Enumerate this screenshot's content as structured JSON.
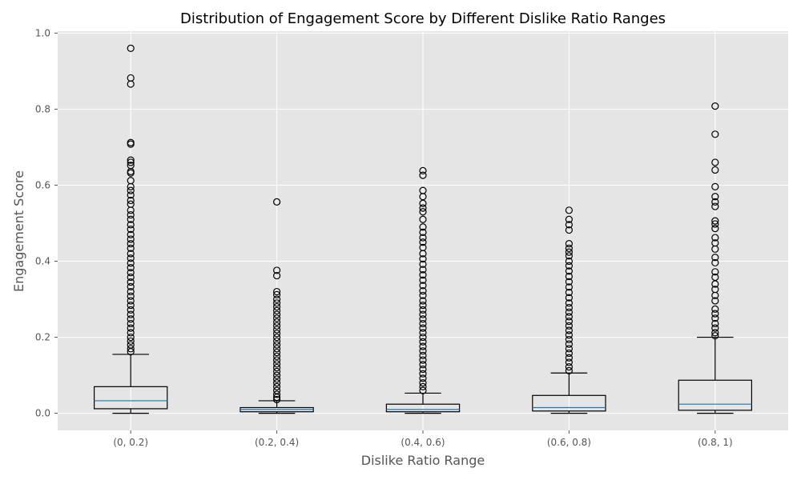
{
  "chart_data": {
    "type": "box",
    "title": "Distribution of Engagement Score by Different Dislike Ratio Ranges",
    "xlabel": "Dislike Ratio Range",
    "ylabel": "Engagement Score",
    "ylim": [
      -0.045,
      1.005
    ],
    "yticks": [
      0.0,
      0.2,
      0.4,
      0.6,
      0.8,
      1.0
    ],
    "ytick_labels": [
      "0.0",
      "0.2",
      "0.4",
      "0.6",
      "0.8",
      "1.0"
    ],
    "grid": true,
    "categories": [
      "(0, 0.2)",
      "(0.2, 0.4)",
      "(0.4, 0.6)",
      "(0.6, 0.8)",
      "(0.8, 1)"
    ],
    "boxes": [
      {
        "category": "(0, 0.2)",
        "whisker_low": 0.0,
        "q1": 0.012,
        "median": 0.033,
        "q3": 0.07,
        "whisker_high": 0.155,
        "outliers": [
          0.96,
          0.882,
          0.866,
          0.712,
          0.708,
          0.666,
          0.66,
          0.652,
          0.636,
          0.632,
          0.612,
          0.596,
          0.586,
          0.574,
          0.56,
          0.55,
          0.534,
          0.522,
          0.51,
          0.496,
          0.484,
          0.47,
          0.458,
          0.446,
          0.434,
          0.42,
          0.408,
          0.395,
          0.383,
          0.37,
          0.358,
          0.345,
          0.333,
          0.32,
          0.308,
          0.296,
          0.284,
          0.272,
          0.26,
          0.248,
          0.236,
          0.224,
          0.212,
          0.2,
          0.19,
          0.18,
          0.17,
          0.162
        ]
      },
      {
        "category": "(0.2, 0.4)",
        "whisker_low": 0.0,
        "q1": 0.004,
        "median": 0.01,
        "q3": 0.015,
        "whisker_high": 0.033,
        "outliers": [
          0.556,
          0.376,
          0.362,
          0.32,
          0.312,
          0.3,
          0.29,
          0.28,
          0.27,
          0.26,
          0.25,
          0.24,
          0.23,
          0.22,
          0.21,
          0.2,
          0.19,
          0.18,
          0.17,
          0.16,
          0.15,
          0.14,
          0.13,
          0.12,
          0.11,
          0.1,
          0.09,
          0.08,
          0.07,
          0.06,
          0.05,
          0.042,
          0.036
        ]
      },
      {
        "category": "(0.4, 0.6)",
        "whisker_low": 0.0,
        "q1": 0.004,
        "median": 0.01,
        "q3": 0.024,
        "whisker_high": 0.053,
        "outliers": [
          0.638,
          0.626,
          0.586,
          0.57,
          0.552,
          0.54,
          0.53,
          0.51,
          0.49,
          0.476,
          0.462,
          0.45,
          0.436,
          0.42,
          0.406,
          0.392,
          0.378,
          0.364,
          0.35,
          0.336,
          0.322,
          0.31,
          0.296,
          0.284,
          0.272,
          0.26,
          0.248,
          0.236,
          0.224,
          0.212,
          0.2,
          0.188,
          0.176,
          0.164,
          0.152,
          0.14,
          0.128,
          0.116,
          0.104,
          0.092,
          0.08,
          0.07,
          0.06
        ]
      },
      {
        "category": "(0.6, 0.8)",
        "whisker_low": 0.0,
        "q1": 0.006,
        "median": 0.015,
        "q3": 0.047,
        "whisker_high": 0.106,
        "outliers": [
          0.534,
          0.51,
          0.496,
          0.482,
          0.446,
          0.434,
          0.424,
          0.414,
          0.4,
          0.388,
          0.374,
          0.36,
          0.346,
          0.332,
          0.318,
          0.304,
          0.29,
          0.278,
          0.266,
          0.254,
          0.242,
          0.23,
          0.218,
          0.206,
          0.194,
          0.182,
          0.17,
          0.158,
          0.146,
          0.134,
          0.122,
          0.112
        ]
      },
      {
        "category": "(0.8, 1)",
        "whisker_low": 0.0,
        "q1": 0.008,
        "median": 0.024,
        "q3": 0.087,
        "whisker_high": 0.2,
        "outliers": [
          0.808,
          0.734,
          0.66,
          0.64,
          0.596,
          0.57,
          0.556,
          0.544,
          0.506,
          0.498,
          0.486,
          0.462,
          0.448,
          0.432,
          0.41,
          0.396,
          0.372,
          0.358,
          0.34,
          0.326,
          0.31,
          0.296,
          0.274,
          0.262,
          0.25,
          0.236,
          0.224,
          0.212,
          0.204
        ]
      }
    ],
    "colors": {
      "plot_bg": "#e5e5e5",
      "grid": "#ffffff",
      "box_edge": "#000000",
      "median": "#1f77b4",
      "flier_edge": "#000000",
      "tick_text": "#555555",
      "title_text": "#000000"
    }
  }
}
